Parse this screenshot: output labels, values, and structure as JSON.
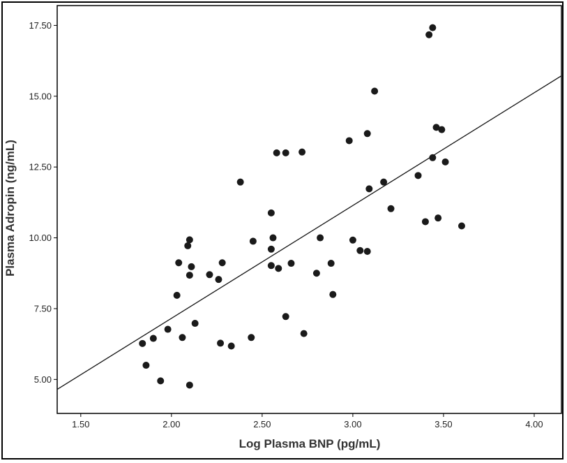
{
  "chart_data": {
    "type": "scatter",
    "title": "",
    "xlabel": "Log Plasma BNP (pg/mL)",
    "ylabel": "Plasma Adropin (ng/mL)",
    "xlim": [
      1.37,
      4.15
    ],
    "ylim": [
      3.8,
      18.2
    ],
    "x_ticks": [
      "1.50",
      "2.00",
      "2.50",
      "3.00",
      "3.50",
      "4.00"
    ],
    "y_ticks": [
      "5.00",
      "7.50",
      "10.00",
      "12.50",
      "15.00",
      "17.50"
    ],
    "grid": false,
    "legend": "none",
    "marker_color": "#1a1a1a",
    "line_color": "#111111",
    "trendline": {
      "x": [
        1.37,
        4.15
      ],
      "y": [
        4.65,
        15.72
      ]
    },
    "points": [
      {
        "x": 1.84,
        "y": 6.27
      },
      {
        "x": 1.86,
        "y": 5.5
      },
      {
        "x": 1.9,
        "y": 6.45
      },
      {
        "x": 1.94,
        "y": 4.95
      },
      {
        "x": 1.98,
        "y": 6.77
      },
      {
        "x": 2.03,
        "y": 7.97
      },
      {
        "x": 2.04,
        "y": 9.12
      },
      {
        "x": 2.06,
        "y": 6.48
      },
      {
        "x": 2.09,
        "y": 9.72
      },
      {
        "x": 2.1,
        "y": 9.93
      },
      {
        "x": 2.1,
        "y": 8.68
      },
      {
        "x": 2.1,
        "y": 4.8
      },
      {
        "x": 2.11,
        "y": 8.98
      },
      {
        "x": 2.13,
        "y": 6.98
      },
      {
        "x": 2.21,
        "y": 8.7
      },
      {
        "x": 2.26,
        "y": 8.53
      },
      {
        "x": 2.27,
        "y": 6.28
      },
      {
        "x": 2.28,
        "y": 9.12
      },
      {
        "x": 2.33,
        "y": 6.18
      },
      {
        "x": 2.38,
        "y": 11.97
      },
      {
        "x": 2.44,
        "y": 6.48
      },
      {
        "x": 2.45,
        "y": 9.88
      },
      {
        "x": 2.55,
        "y": 10.88
      },
      {
        "x": 2.55,
        "y": 9.6
      },
      {
        "x": 2.55,
        "y": 9.02
      },
      {
        "x": 2.56,
        "y": 10.0
      },
      {
        "x": 2.58,
        "y": 13.0
      },
      {
        "x": 2.59,
        "y": 8.92
      },
      {
        "x": 2.63,
        "y": 13.0
      },
      {
        "x": 2.63,
        "y": 7.22
      },
      {
        "x": 2.66,
        "y": 9.1
      },
      {
        "x": 2.72,
        "y": 13.03
      },
      {
        "x": 2.73,
        "y": 6.62
      },
      {
        "x": 2.8,
        "y": 8.75
      },
      {
        "x": 2.82,
        "y": 10.0
      },
      {
        "x": 2.88,
        "y": 9.1
      },
      {
        "x": 2.89,
        "y": 8.0
      },
      {
        "x": 2.98,
        "y": 13.43
      },
      {
        "x": 3.0,
        "y": 9.92
      },
      {
        "x": 3.04,
        "y": 9.55
      },
      {
        "x": 3.08,
        "y": 13.68
      },
      {
        "x": 3.08,
        "y": 9.52
      },
      {
        "x": 3.09,
        "y": 11.73
      },
      {
        "x": 3.12,
        "y": 15.18
      },
      {
        "x": 3.17,
        "y": 11.97
      },
      {
        "x": 3.21,
        "y": 11.03
      },
      {
        "x": 3.36,
        "y": 12.2
      },
      {
        "x": 3.4,
        "y": 10.57
      },
      {
        "x": 3.42,
        "y": 17.17
      },
      {
        "x": 3.44,
        "y": 17.42
      },
      {
        "x": 3.44,
        "y": 12.83
      },
      {
        "x": 3.46,
        "y": 13.9
      },
      {
        "x": 3.47,
        "y": 10.7
      },
      {
        "x": 3.49,
        "y": 13.82
      },
      {
        "x": 3.51,
        "y": 12.68
      },
      {
        "x": 3.6,
        "y": 10.42
      }
    ]
  }
}
